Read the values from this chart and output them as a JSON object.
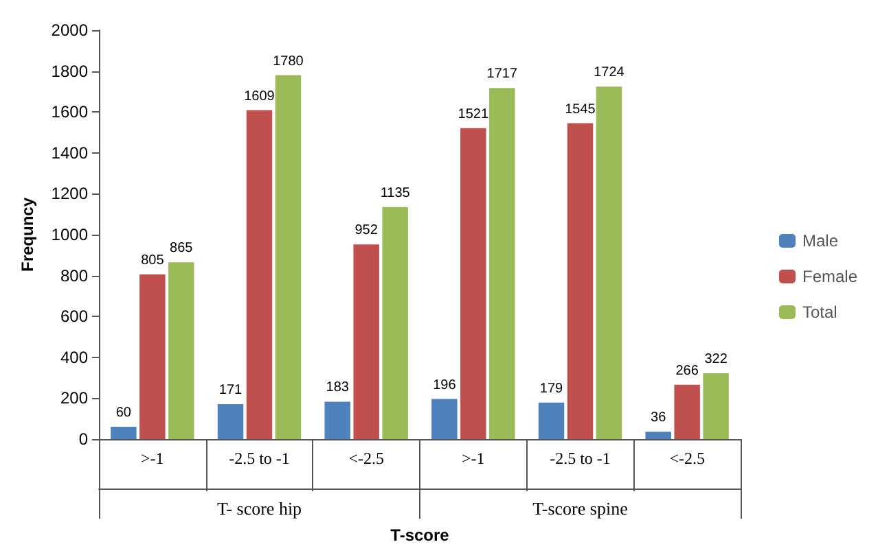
{
  "chart_data": {
    "type": "bar",
    "xlabel": "T-score",
    "ylabel": "Frequncy",
    "categories": [
      ">-1",
      "-2.5 to -1",
      "<-2.5",
      ">-1",
      "-2.5 to -1",
      "<-2.5"
    ],
    "annotations": [
      "T- score hip",
      "T-score spine"
    ],
    "series": [
      {
        "name": "Male",
        "color": "#4f81bd",
        "values": [
          60,
          171,
          183,
          196,
          179,
          36
        ]
      },
      {
        "name": "Female",
        "color": "#c0504d",
        "values": [
          805,
          1609,
          952,
          1521,
          1545,
          266
        ]
      },
      {
        "name": "Total",
        "color": "#9bbb59",
        "values": [
          865,
          1780,
          1135,
          1717,
          1724,
          322
        ]
      }
    ],
    "ylim": [
      0,
      2000
    ],
    "yticks": [
      0,
      200,
      400,
      600,
      800,
      1000,
      1200,
      1400,
      1600,
      1800,
      2000
    ],
    "data_labels": true,
    "grid": false,
    "legend": "right"
  }
}
